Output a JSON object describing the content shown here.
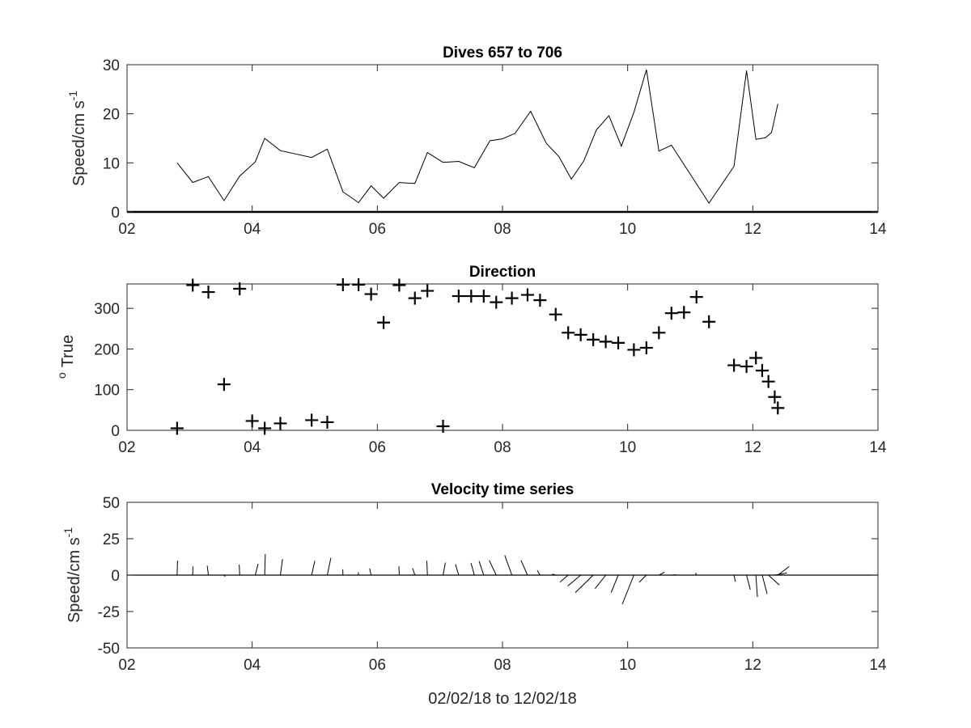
{
  "chart_data": [
    {
      "type": "line",
      "title": "Dives 657 to 706",
      "ylabel": "Speed/cm s",
      "ylabel_superscript": "-1",
      "xlabel": "",
      "xlim": [
        2,
        14
      ],
      "ylim": [
        0,
        30
      ],
      "xticks": [
        "02",
        "04",
        "06",
        "08",
        "10",
        "12",
        "14"
      ],
      "yticks": [
        "0",
        "10",
        "20",
        "30"
      ],
      "grid": false,
      "color": "#000000",
      "series": [
        {
          "x": [
            2.8,
            3.05,
            3.3,
            3.55,
            3.8,
            4.05,
            4.2,
            4.45,
            4.95,
            5.2,
            5.45,
            5.7,
            5.9,
            6.1,
            6.35,
            6.6,
            6.8,
            7.05,
            7.3,
            7.55,
            7.8,
            8.0,
            8.2,
            8.45,
            8.7,
            8.9,
            9.1,
            9.3,
            9.5,
            9.7,
            9.9,
            10.1,
            10.3,
            10.5,
            10.7,
            11.3,
            11.7,
            11.9,
            12.05,
            12.2,
            12.3,
            12.4
          ],
          "y": [
            10,
            6,
            7.2,
            2.3,
            7.3,
            10.2,
            15,
            12.5,
            11.1,
            12.8,
            4.1,
            1.9,
            5.3,
            2.8,
            6,
            5.8,
            12.1,
            10.1,
            10.3,
            9,
            14.5,
            14.9,
            16,
            20.5,
            14,
            11.3,
            6.7,
            10.4,
            16.7,
            19.6,
            13.4,
            20.3,
            29,
            12.4,
            13.6,
            1.8,
            9.3,
            28.8,
            14.8,
            15.1,
            16.2,
            22
          ]
        }
      ]
    },
    {
      "type": "scatter",
      "title": "Direction",
      "ylabel": "True",
      "ylabel_superscript": "o",
      "xlabel": "",
      "xlim": [
        2,
        14
      ],
      "ylim": [
        0,
        360
      ],
      "xticks": [
        "02",
        "04",
        "06",
        "08",
        "10",
        "12",
        "14"
      ],
      "yticks": [
        "0",
        "100",
        "200",
        "300"
      ],
      "grid": false,
      "marker": "+",
      "color": "#000000",
      "series": [
        {
          "x": [
            2.8,
            3.05,
            3.3,
            3.55,
            3.8,
            4.0,
            4.2,
            4.45,
            4.95,
            5.2,
            5.45,
            5.7,
            5.9,
            6.1,
            6.35,
            6.6,
            6.8,
            7.05,
            7.3,
            7.5,
            7.7,
            7.9,
            8.15,
            8.4,
            8.6,
            8.85,
            9.05,
            9.25,
            9.45,
            9.65,
            9.85,
            10.1,
            10.3,
            10.5,
            10.7,
            10.9,
            11.1,
            11.3,
            11.7,
            11.9,
            12.05,
            12.15,
            12.25,
            12.35,
            12.4
          ],
          "y": [
            5,
            357,
            340,
            113,
            348,
            23,
            5,
            17,
            25,
            20,
            358,
            358,
            335,
            265,
            357,
            325,
            343,
            10,
            330,
            330,
            330,
            315,
            325,
            333,
            320,
            285,
            240,
            235,
            223,
            218,
            215,
            198,
            203,
            240,
            288,
            290,
            328,
            267,
            160,
            157,
            178,
            147,
            120,
            82,
            55
          ]
        }
      ]
    },
    {
      "type": "quiver",
      "title": "Velocity time series",
      "ylabel": "Speed/cm s",
      "ylabel_superscript": "-1",
      "xlabel": "02/02/18 to 12/02/18",
      "xlim": [
        2,
        14
      ],
      "ylim": [
        -50,
        50
      ],
      "xticks": [
        "02",
        "04",
        "06",
        "08",
        "10",
        "12",
        "14"
      ],
      "yticks": [
        "-50",
        "-25",
        "0",
        "25",
        "50"
      ],
      "grid": false,
      "color": "#000000",
      "vectors": [
        {
          "x": 2.8,
          "u": 0.3,
          "v": 10
        },
        {
          "x": 3.05,
          "u": 0.1,
          "v": 6
        },
        {
          "x": 3.3,
          "u": -0.8,
          "v": 6.5
        },
        {
          "x": 3.55,
          "u": 0.8,
          "v": -1
        },
        {
          "x": 3.8,
          "u": -0.3,
          "v": 7.2
        },
        {
          "x": 4.05,
          "u": 1.9,
          "v": 7.8
        },
        {
          "x": 4.2,
          "u": 0.4,
          "v": 14.5
        },
        {
          "x": 4.45,
          "u": 1.5,
          "v": 11
        },
        {
          "x": 4.95,
          "u": 2.2,
          "v": 9.9
        },
        {
          "x": 5.2,
          "u": 2.5,
          "v": 11.9
        },
        {
          "x": 5.45,
          "u": -0.1,
          "v": 4
        },
        {
          "x": 5.7,
          "u": -0.2,
          "v": 2
        },
        {
          "x": 5.9,
          "u": -1.0,
          "v": 4.6
        },
        {
          "x": 6.35,
          "u": -0.2,
          "v": 6
        },
        {
          "x": 6.6,
          "u": -1.6,
          "v": 4.8
        },
        {
          "x": 6.8,
          "u": -0.4,
          "v": 9.9
        },
        {
          "x": 7.05,
          "u": 1.6,
          "v": 8.6
        },
        {
          "x": 7.3,
          "u": -2.2,
          "v": 7.4
        },
        {
          "x": 7.55,
          "u": -2.3,
          "v": 8.4
        },
        {
          "x": 7.7,
          "u": -3.2,
          "v": 9.6
        },
        {
          "x": 7.9,
          "u": -4.8,
          "v": 10.1
        },
        {
          "x": 8.15,
          "u": -4.9,
          "v": 13.6
        },
        {
          "x": 8.4,
          "u": -4.5,
          "v": 10.2
        },
        {
          "x": 8.6,
          "u": -1.9,
          "v": 3.3
        },
        {
          "x": 8.85,
          "u": -2.4,
          "v": 0.7
        },
        {
          "x": 9.05,
          "u": -5.7,
          "v": -4.8
        },
        {
          "x": 9.25,
          "u": -8.9,
          "v": -7.5
        },
        {
          "x": 9.45,
          "u": -12.3,
          "v": -12.0
        },
        {
          "x": 9.65,
          "u": -7.3,
          "v": -9.3
        },
        {
          "x": 9.85,
          "u": -4.9,
          "v": -12.0
        },
        {
          "x": 10.1,
          "u": -8.0,
          "v": -20.0
        },
        {
          "x": 10.3,
          "u": -5.0,
          "v": -5.0
        },
        {
          "x": 10.5,
          "u": 3.8,
          "v": 2.0
        },
        {
          "x": 10.7,
          "u": 3.0,
          "v": 0.3
        },
        {
          "x": 11.1,
          "u": -0.6,
          "v": 1.6
        },
        {
          "x": 11.7,
          "u": 0.9,
          "v": -4.5
        },
        {
          "x": 11.9,
          "u": 2.6,
          "v": -10.0
        },
        {
          "x": 12.05,
          "u": 1.0,
          "v": -15.0
        },
        {
          "x": 12.15,
          "u": 3.4,
          "v": -13.0
        },
        {
          "x": 12.25,
          "u": 7.5,
          "v": -6.8
        },
        {
          "x": 12.35,
          "u": 8.5,
          "v": 1.5
        },
        {
          "x": 12.4,
          "u": 7.8,
          "v": 5.9
        }
      ]
    }
  ]
}
